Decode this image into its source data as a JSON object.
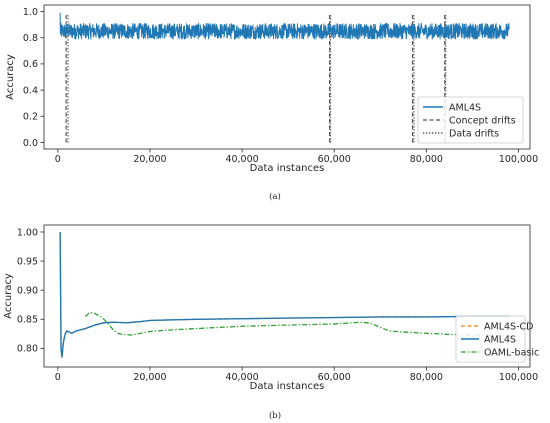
{
  "chart_data": [
    {
      "type": "line",
      "caption": "(a)",
      "xlabel": "Data instances",
      "ylabel": "Accuracy",
      "xlim": [
        -3000,
        102500
      ],
      "ylim": [
        -0.05,
        1.05
      ],
      "xticks": [
        0,
        20000,
        40000,
        60000,
        80000,
        100000
      ],
      "xtick_labels": [
        "0",
        "20,000",
        "40,000",
        "60,000",
        "80,000",
        "100,000"
      ],
      "yticks": [
        0.0,
        0.2,
        0.4,
        0.6,
        0.8,
        1.0
      ],
      "ytick_labels": [
        "0.0",
        "0.2",
        "0.4",
        "0.6",
        "0.8",
        "1.0"
      ],
      "legend_position": "bottom-right",
      "grid": false,
      "series": [
        {
          "name": "AML4S",
          "style": "solid",
          "color": "#1f77b4",
          "x_range": [
            500,
            98000
          ],
          "mean": 0.85,
          "spread": 0.06
        }
      ],
      "concept_drifts": {
        "name": "Concept drifts",
        "style": "dashed",
        "color": "#555555",
        "x": [
          1800,
          59000,
          77000,
          84000
        ]
      },
      "data_drifts": {
        "name": "Data drifts",
        "style": "dotted",
        "color": "#555555",
        "x": [
          2200,
          59200,
          77300,
          84200
        ]
      }
    },
    {
      "type": "line",
      "caption": "(b)",
      "xlabel": "Data instances",
      "ylabel": "Accuracy",
      "xlim": [
        -3000,
        102500
      ],
      "ylim": [
        0.768,
        1.012
      ],
      "xticks": [
        0,
        20000,
        40000,
        60000,
        80000,
        100000
      ],
      "xtick_labels": [
        "0",
        "20,000",
        "40,000",
        "60,000",
        "80,000",
        "100,000"
      ],
      "yticks": [
        0.8,
        0.85,
        0.9,
        0.95,
        1.0
      ],
      "ytick_labels": [
        "0.80",
        "0.85",
        "0.90",
        "0.95",
        "1.00"
      ],
      "legend_position": "bottom-right",
      "grid": false,
      "series": [
        {
          "name": "AML4S-CD",
          "style": "dashed",
          "color": "#ff7f0e",
          "x": [
            500,
            700,
            900,
            1200,
            1600,
            2000,
            2500,
            3000,
            4000,
            5000,
            6000,
            7000,
            8000,
            9000,
            10000,
            12000,
            15000,
            18000,
            20000,
            25000,
            30000,
            40000,
            50000,
            60000,
            70000,
            80000,
            90000,
            98000
          ],
          "y": [
            1.0,
            0.8,
            0.785,
            0.81,
            0.825,
            0.83,
            0.828,
            0.826,
            0.83,
            0.832,
            0.834,
            0.837,
            0.84,
            0.842,
            0.844,
            0.845,
            0.844,
            0.846,
            0.848,
            0.849,
            0.85,
            0.851,
            0.852,
            0.853,
            0.854,
            0.854,
            0.855,
            0.855
          ]
        },
        {
          "name": "AML4S",
          "style": "solid",
          "color": "#1f77b4",
          "x": [
            500,
            700,
            900,
            1200,
            1600,
            2000,
            2500,
            3000,
            4000,
            5000,
            6000,
            7000,
            8000,
            9000,
            10000,
            12000,
            15000,
            18000,
            20000,
            25000,
            30000,
            40000,
            50000,
            60000,
            70000,
            80000,
            90000,
            98000
          ],
          "y": [
            1.0,
            0.8,
            0.785,
            0.81,
            0.825,
            0.83,
            0.828,
            0.826,
            0.83,
            0.832,
            0.834,
            0.837,
            0.84,
            0.842,
            0.844,
            0.845,
            0.844,
            0.846,
            0.848,
            0.849,
            0.85,
            0.851,
            0.852,
            0.853,
            0.854,
            0.854,
            0.855,
            0.855
          ]
        },
        {
          "name": "OAML-basic",
          "style": "dashdot",
          "color": "#2ca02c",
          "x": [
            6000,
            7000,
            8000,
            9000,
            10000,
            11000,
            12000,
            13000,
            14000,
            16000,
            18000,
            20000,
            25000,
            30000,
            40000,
            50000,
            60000,
            64000,
            66000,
            68000,
            70000,
            72000,
            75000,
            80000,
            85000,
            90000,
            95000,
            98000
          ],
          "y": [
            0.855,
            0.862,
            0.86,
            0.856,
            0.85,
            0.842,
            0.832,
            0.826,
            0.824,
            0.823,
            0.826,
            0.829,
            0.832,
            0.834,
            0.838,
            0.84,
            0.842,
            0.844,
            0.845,
            0.843,
            0.836,
            0.83,
            0.828,
            0.826,
            0.824,
            0.823,
            0.822,
            0.822
          ]
        }
      ]
    }
  ]
}
